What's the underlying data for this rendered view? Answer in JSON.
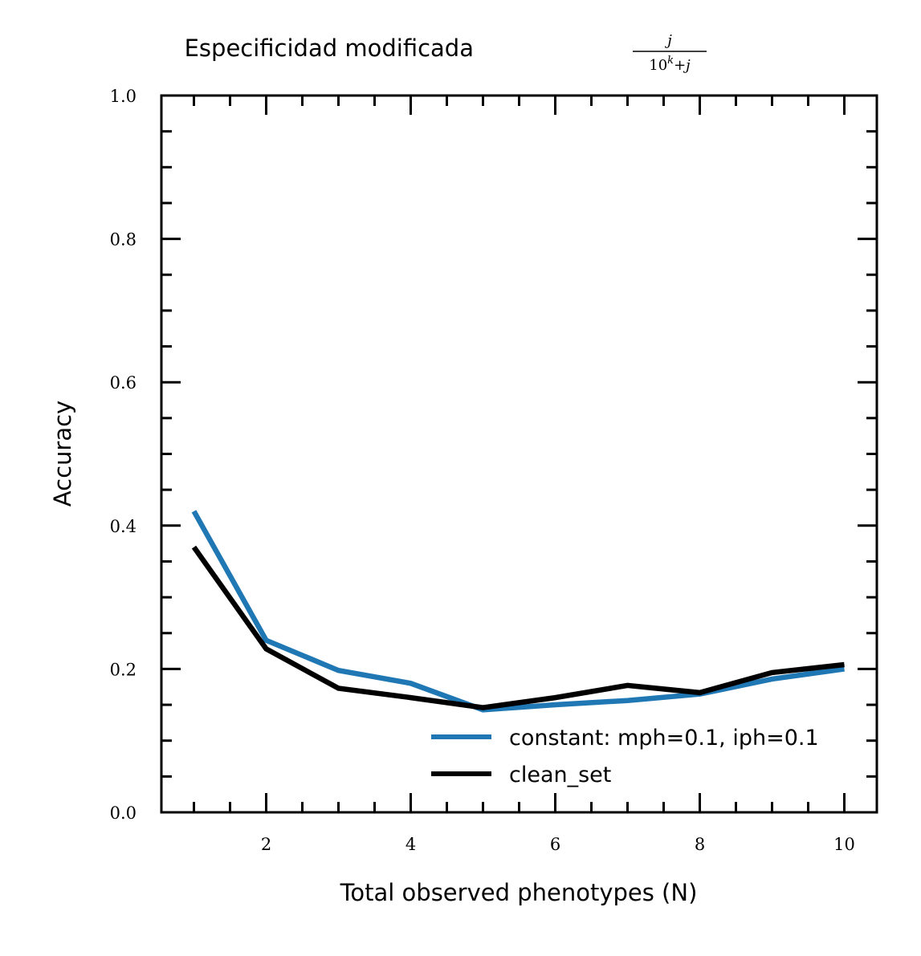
{
  "chart_data": {
    "type": "line",
    "title": "Especificidad modificada",
    "title_formula": {
      "numerator": "j",
      "denominator": "10^k + j",
      "denominator_base": "10",
      "denominator_exp": "k",
      "denominator_rest": "+j"
    },
    "xlabel": "Total observed phenotypes (N)",
    "ylabel": "Accuracy",
    "xlim": [
      0.55,
      10.45
    ],
    "ylim": [
      0.0,
      1.0
    ],
    "x_ticks": [
      2,
      4,
      6,
      8,
      10
    ],
    "x_tick_labels": [
      "2",
      "4",
      "6",
      "8",
      "10"
    ],
    "y_ticks": [
      0.0,
      0.2,
      0.4,
      0.6,
      0.8,
      1.0
    ],
    "y_tick_labels": [
      "0.0",
      "0.2",
      "0.4",
      "0.6",
      "0.8",
      "1.0"
    ],
    "x_minor_step": 0.5,
    "y_minor_step": 0.05,
    "grid": false,
    "legend_position": "lower right",
    "x": [
      1,
      2,
      3,
      4,
      5,
      6,
      7,
      8,
      9,
      10
    ],
    "series": [
      {
        "name": "constant: mph=0.1, iph=0.1",
        "color": "#1f77b4",
        "values": [
          0.42,
          0.24,
          0.198,
          0.18,
          0.143,
          0.15,
          0.156,
          0.165,
          0.186,
          0.2
        ]
      },
      {
        "name": "clean_set",
        "color": "#000000",
        "values": [
          0.37,
          0.228,
          0.173,
          0.16,
          0.146,
          0.16,
          0.177,
          0.167,
          0.195,
          0.206
        ]
      }
    ]
  }
}
